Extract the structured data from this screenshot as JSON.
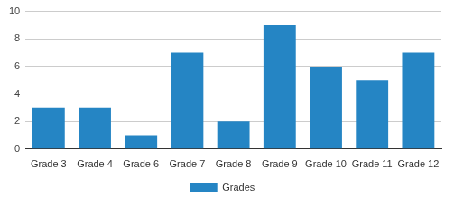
{
  "chart_data": {
    "type": "bar",
    "categories": [
      "Grade 3",
      "Grade 4",
      "Grade 6",
      "Grade 7",
      "Grade 8",
      "Grade 9",
      "Grade 10",
      "Grade 11",
      "Grade 12"
    ],
    "series": [
      {
        "name": "Grades",
        "color": "#2585c4",
        "values": [
          3,
          3,
          1,
          7,
          2,
          9,
          6,
          5,
          7
        ]
      }
    ],
    "ylim": [
      0,
      10
    ],
    "yticks": [
      0,
      2,
      4,
      6,
      8,
      10
    ],
    "grid": true,
    "legend": "bottom"
  }
}
